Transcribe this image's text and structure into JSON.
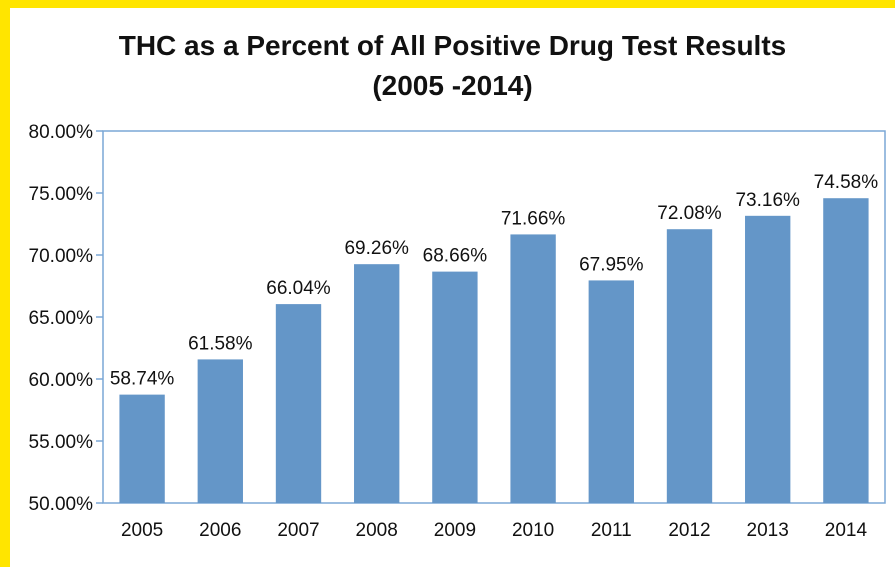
{
  "chart_data": {
    "type": "bar",
    "title": "THC as a Percent of All Positive Drug Test Results",
    "subtitle": "(2005 -2014)",
    "categories": [
      "2005",
      "2006",
      "2007",
      "2008",
      "2009",
      "2010",
      "2011",
      "2012",
      "2013",
      "2014"
    ],
    "values": [
      58.74,
      61.58,
      66.04,
      69.26,
      68.66,
      71.66,
      67.95,
      72.08,
      73.16,
      74.58
    ],
    "value_labels": [
      "58.74%",
      "61.58%",
      "66.04%",
      "69.26%",
      "68.66%",
      "71.66%",
      "67.95%",
      "72.08%",
      "73.16%",
      "74.58%"
    ],
    "ylim": [
      50,
      80
    ],
    "y_ticks": [
      50,
      55,
      60,
      65,
      70,
      75,
      80
    ],
    "y_tick_labels": [
      "50.00%",
      "55.00%",
      "60.00%",
      "65.00%",
      "70.00%",
      "75.00%",
      "80.00%"
    ],
    "xlabel": "",
    "ylabel": "",
    "grid": false,
    "legend": "none",
    "colors": {
      "bar": "#6496c8",
      "plot_border": "#7aa7d6",
      "frame_background": "#ffe500",
      "text": "#111111"
    }
  }
}
